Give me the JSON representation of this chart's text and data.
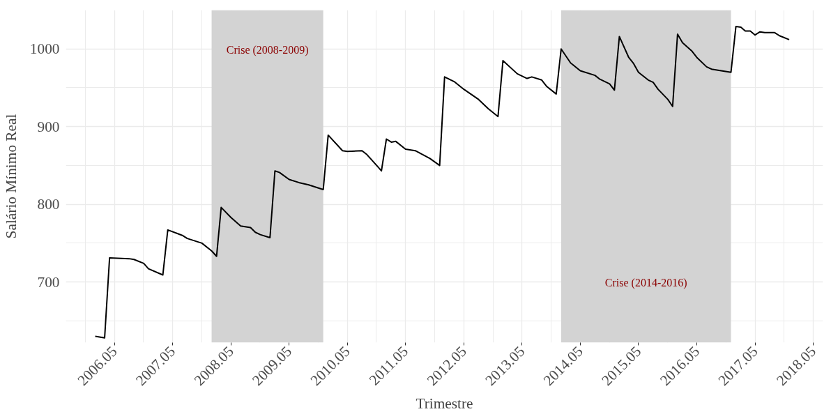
{
  "chart_data": {
    "type": "line",
    "xlabel": "Trimestre",
    "ylabel": "Salário Mínimo Real",
    "x": [
      "2006-01",
      "2006-03",
      "2006-04",
      "2006-08",
      "2006-09",
      "2006-11",
      "2006-12",
      "2007-03",
      "2007-04",
      "2007-07",
      "2007-08",
      "2007-11",
      "2008-01",
      "2008-02",
      "2008-03",
      "2008-05",
      "2008-07",
      "2008-09",
      "2008-10",
      "2008-11",
      "2009-01",
      "2009-02",
      "2009-03",
      "2009-05",
      "2009-07",
      "2009-09",
      "2009-12",
      "2010-01",
      "2010-04",
      "2010-05",
      "2010-08",
      "2010-09",
      "2010-11",
      "2010-12",
      "2011-01",
      "2011-02",
      "2011-03",
      "2011-05",
      "2011-07",
      "2011-10",
      "2011-12",
      "2012-01",
      "2012-03",
      "2012-05",
      "2012-08",
      "2012-10",
      "2012-12",
      "2013-01",
      "2013-04",
      "2013-06",
      "2013-07",
      "2013-09",
      "2013-10",
      "2013-12",
      "2014-01",
      "2014-03",
      "2014-05",
      "2014-08",
      "2014-09",
      "2014-11",
      "2014-12",
      "2015-01",
      "2015-03",
      "2015-04",
      "2015-05",
      "2015-07",
      "2015-08",
      "2015-09",
      "2015-11",
      "2015-12",
      "2016-01",
      "2016-02",
      "2016-04",
      "2016-05",
      "2016-07",
      "2016-08",
      "2016-10",
      "2016-12",
      "2017-01",
      "2017-02",
      "2017-03",
      "2017-04",
      "2017-05",
      "2017-06",
      "2017-07",
      "2017-09",
      "2017-10",
      "2017-12"
    ],
    "series": [
      {
        "color": "#000000",
        "values": [
          630,
          628,
          731,
          730,
          729,
          724,
          717,
          709,
          767,
          760,
          756,
          750,
          740,
          733,
          796,
          783,
          772,
          770,
          764,
          761,
          757,
          843,
          841,
          832,
          828,
          825,
          819,
          889,
          869,
          868,
          869,
          864,
          850,
          843,
          884,
          880,
          881,
          871,
          869,
          859,
          850,
          964,
          958,
          948,
          935,
          923,
          913,
          985,
          968,
          962,
          964,
          960,
          952,
          942,
          1000,
          982,
          972,
          966,
          961,
          955,
          947,
          1016,
          989,
          981,
          970,
          960,
          957,
          948,
          935,
          926,
          1019,
          1008,
          997,
          989,
          977,
          974,
          972,
          970,
          1029,
          1028,
          1023,
          1023,
          1018,
          1022,
          1021,
          1021,
          1017,
          1012
        ]
      }
    ],
    "xlim": [
      "2005-07",
      "2018-07"
    ],
    "xticks": [
      {
        "value": "2006-05",
        "label": "2006.05"
      },
      {
        "value": "2007-05",
        "label": "2007.05"
      },
      {
        "value": "2008-05",
        "label": "2008.05"
      },
      {
        "value": "2009-05",
        "label": "2009.05"
      },
      {
        "value": "2010-05",
        "label": "2010.05"
      },
      {
        "value": "2011-05",
        "label": "2011.05"
      },
      {
        "value": "2012-05",
        "label": "2012.05"
      },
      {
        "value": "2013-05",
        "label": "2013.05"
      },
      {
        "value": "2014-05",
        "label": "2014.05"
      },
      {
        "value": "2015-05",
        "label": "2015.05"
      },
      {
        "value": "2016-05",
        "label": "2016.05"
      },
      {
        "value": "2017-05",
        "label": "2017.05"
      },
      {
        "value": "2018-05",
        "label": "2018.05"
      }
    ],
    "ylim": [
      622,
      1050
    ],
    "yticks": [
      700,
      800,
      900,
      1000
    ],
    "bands": [
      {
        "axis": "x",
        "from": "2008-01",
        "to": "2009-12",
        "color": "#d3d3d3",
        "label": "Crise (2008-2009)"
      },
      {
        "axis": "x",
        "from": "2014-01",
        "to": "2016-12",
        "color": "#d3d3d3",
        "label": "Crise (2014-2016)"
      }
    ],
    "grid": true,
    "marker": "none",
    "line_style": "solid"
  }
}
